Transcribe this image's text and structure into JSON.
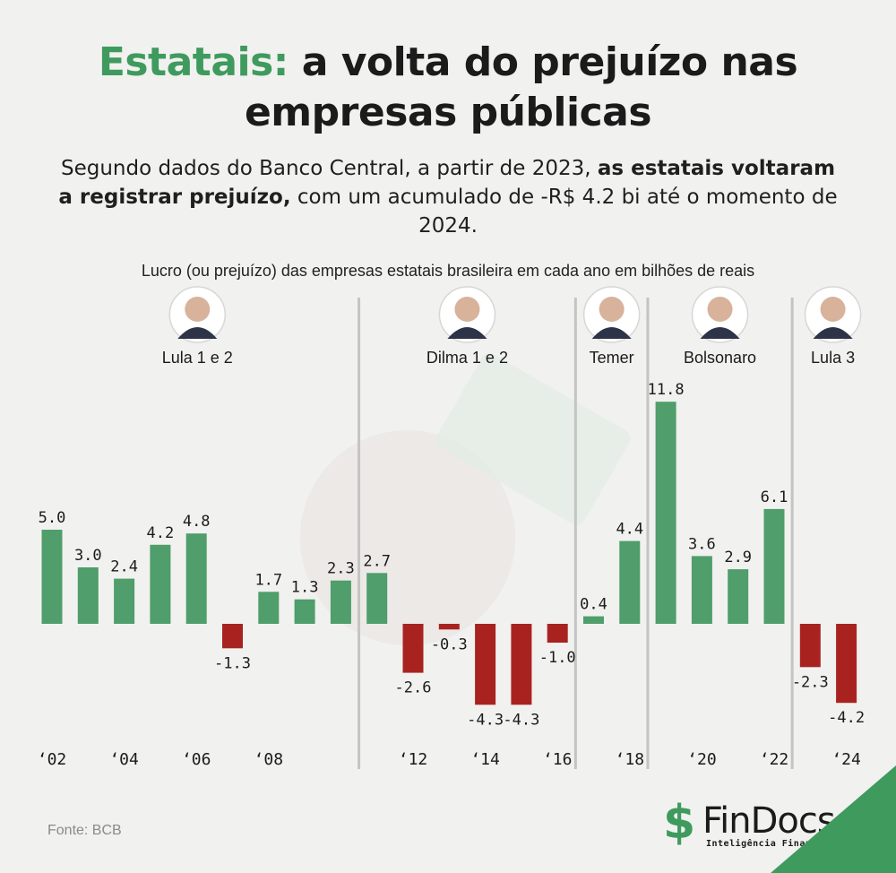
{
  "header": {
    "title_accent": "Estatais:",
    "title_line1_rest": " a volta do prejuízo nas",
    "title_line2": "empresas públicas",
    "subtitle_part1": "Segundo dados do Banco Central, a partir de 2023, ",
    "subtitle_bold": "as estatais voltaram a registrar prejuízo,",
    "subtitle_part2": " com um acumulado de -R$ 4.2 bi até o momento de 2024."
  },
  "chart_caption": "Lucro (ou prejuízo) das empresas estatais brasileira em cada ano em bilhões de reais",
  "chart_data": {
    "type": "bar",
    "title": "Lucro (ou prejuízo) das empresas estatais brasileira em cada ano em bilhões de reais",
    "unit": "bilhões de reais",
    "categories": [
      "2002",
      "2003",
      "2004",
      "2005",
      "2006",
      "2007",
      "2008",
      "2009",
      "2010",
      "2011",
      "2012",
      "2013",
      "2014",
      "2015",
      "2016",
      "2017",
      "2018",
      "2019",
      "2020",
      "2021",
      "2022",
      "2023",
      "2024"
    ],
    "values": [
      5.0,
      3.0,
      2.4,
      4.2,
      4.8,
      -1.3,
      1.7,
      1.3,
      2.3,
      2.7,
      -2.6,
      -0.3,
      -4.3,
      -4.3,
      -1.0,
      0.4,
      4.4,
      11.8,
      3.6,
      2.9,
      6.1,
      -2.3,
      -4.2
    ],
    "value_labels": [
      "5.0",
      "3.0",
      "2.4",
      "4.2",
      "4.8",
      "-1.3",
      "1.7",
      "1.3",
      "2.3",
      "2.7",
      "-2.6",
      "-0.3",
      "-4.3",
      "-4.3",
      "-1.0",
      "0.4",
      "4.4",
      "11.8",
      "3.6",
      "2.9",
      "6.1",
      "-2.3",
      "-4.2"
    ],
    "tick_labels": [
      {
        "index": 0,
        "label": "‘02"
      },
      {
        "index": 2,
        "label": "‘04"
      },
      {
        "index": 4,
        "label": "‘06"
      },
      {
        "index": 6,
        "label": "‘08"
      },
      {
        "index": 10,
        "label": "‘12"
      },
      {
        "index": 12,
        "label": "‘14"
      },
      {
        "index": 14,
        "label": "‘16"
      },
      {
        "index": 16,
        "label": "‘18"
      },
      {
        "index": 18,
        "label": "‘20"
      },
      {
        "index": 20,
        "label": "‘22"
      },
      {
        "index": 22,
        "label": "‘24"
      }
    ],
    "periods": [
      {
        "label": "Lula 1 e 2",
        "start": 0,
        "end": 8
      },
      {
        "label": "Dilma 1 e 2",
        "start": 9,
        "end": 14
      },
      {
        "label": "Temer",
        "start": 15,
        "end": 16
      },
      {
        "label": "Bolsonaro",
        "start": 17,
        "end": 20
      },
      {
        "label": "Lula 3",
        "start": 21,
        "end": 22
      }
    ],
    "colors": {
      "positive": "#4f9e6b",
      "negative": "#a8231f",
      "divider": "#c4c4c4"
    },
    "grid": false,
    "legend": "none"
  },
  "footer": {
    "source": "Fonte: BCB",
    "logo_symbol": "$",
    "logo_name": "FinDocs",
    "logo_tagline": "Inteligência Financeira"
  }
}
